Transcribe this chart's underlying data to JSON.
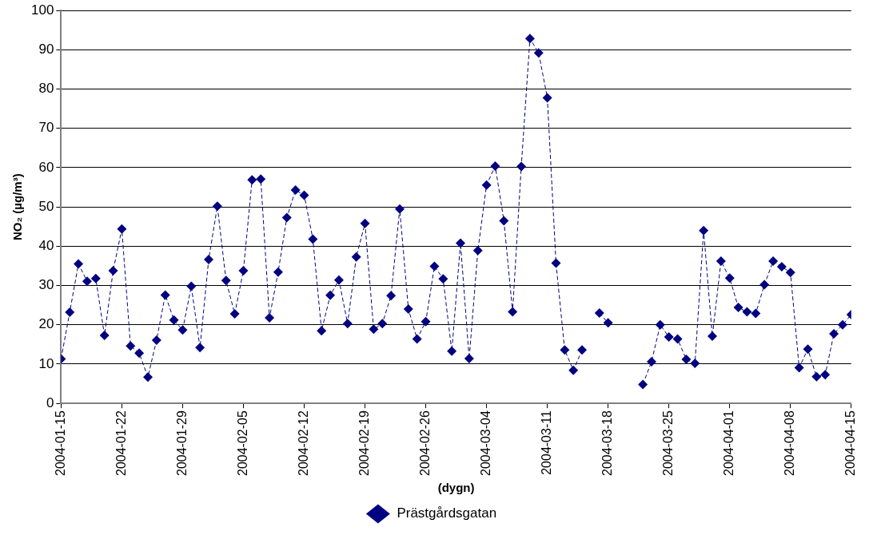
{
  "chart_data": {
    "type": "line",
    "xlabel": "(dygn)",
    "ylabel": "NO₂ (µg/m³)",
    "x": [
      "2004-01-15",
      "2004-01-16",
      "2004-01-17",
      "2004-01-18",
      "2004-01-19",
      "2004-01-20",
      "2004-01-21",
      "2004-01-22",
      "2004-01-23",
      "2004-01-24",
      "2004-01-25",
      "2004-01-26",
      "2004-01-27",
      "2004-01-28",
      "2004-01-29",
      "2004-01-30",
      "2004-01-31",
      "2004-02-01",
      "2004-02-02",
      "2004-02-03",
      "2004-02-04",
      "2004-02-05",
      "2004-02-06",
      "2004-02-07",
      "2004-02-08",
      "2004-02-09",
      "2004-02-10",
      "2004-02-11",
      "2004-02-12",
      "2004-02-13",
      "2004-02-14",
      "2004-02-15",
      "2004-02-16",
      "2004-02-17",
      "2004-02-18",
      "2004-02-19",
      "2004-02-20",
      "2004-02-21",
      "2004-02-22",
      "2004-02-23",
      "2004-02-24",
      "2004-02-25",
      "2004-02-26",
      "2004-02-27",
      "2004-02-28",
      "2004-02-29",
      "2004-03-01",
      "2004-03-02",
      "2004-03-03",
      "2004-03-04",
      "2004-03-05",
      "2004-03-06",
      "2004-03-07",
      "2004-03-08",
      "2004-03-09",
      "2004-03-10",
      "2004-03-11",
      "2004-03-12",
      "2004-03-13",
      "2004-03-14",
      "2004-03-15",
      "2004-03-16",
      "2004-03-17",
      "2004-03-18",
      "2004-03-19",
      "2004-03-20",
      "2004-03-21",
      "2004-03-22",
      "2004-03-23",
      "2004-03-24",
      "2004-03-25",
      "2004-03-26",
      "2004-03-27",
      "2004-03-28",
      "2004-03-29",
      "2004-03-30",
      "2004-03-31",
      "2004-04-01",
      "2004-04-02",
      "2004-04-03",
      "2004-04-04",
      "2004-04-05",
      "2004-04-06",
      "2004-04-07",
      "2004-04-08",
      "2004-04-09",
      "2004-04-10",
      "2004-04-11",
      "2004-04-12",
      "2004-04-13",
      "2004-04-14",
      "2004-04-15"
    ],
    "series": [
      {
        "name": "Prästgårdsgatan",
        "color": "#000080",
        "values": [
          11.3,
          23.2,
          35.5,
          31.1,
          31.8,
          17.3,
          33.8,
          44.4,
          14.6,
          12.8,
          6.7,
          16.1,
          27.6,
          21.2,
          18.7,
          29.8,
          14.2,
          36.6,
          50.2,
          31.3,
          22.8,
          33.8,
          56.9,
          57.1,
          21.8,
          33.4,
          47.3,
          54.3,
          53.0,
          41.8,
          18.5,
          27.5,
          31.4,
          20.3,
          37.3,
          45.8,
          18.9,
          20.3,
          27.4,
          49.5,
          24.0,
          16.4,
          20.8,
          34.9,
          31.7,
          13.3,
          40.8,
          11.4,
          38.9,
          55.6,
          60.4,
          46.5,
          23.3,
          60.3,
          92.9,
          89.2,
          77.8,
          35.7,
          13.6,
          8.4,
          13.6,
          null,
          23.0,
          20.5,
          null,
          null,
          null,
          4.8,
          10.6,
          20.0,
          16.9,
          16.4,
          11.2,
          10.2,
          44.0,
          17.1,
          36.2,
          31.9,
          24.4,
          23.3,
          22.9,
          30.2,
          36.2,
          34.8,
          33.3,
          9.1,
          13.8,
          6.8,
          7.3,
          17.7,
          20.0,
          22.6
        ]
      }
    ],
    "xlim": [
      "2004-01-15",
      "2004-04-15"
    ],
    "xticks": [
      "2004-01-15",
      "2004-01-22",
      "2004-01-29",
      "2004-02-05",
      "2004-02-12",
      "2004-02-19",
      "2004-02-26",
      "2004-03-04",
      "2004-03-11",
      "2004-03-18",
      "2004-03-25",
      "2004-04-01",
      "2004-04-08",
      "2004-04-15"
    ],
    "ylim": [
      0,
      100
    ],
    "yticks": [
      0,
      10,
      20,
      30,
      40,
      50,
      60,
      70,
      80,
      90,
      100
    ],
    "grid": "y",
    "legend": "bottom",
    "marker": "diamond",
    "line_style": "dashed"
  }
}
